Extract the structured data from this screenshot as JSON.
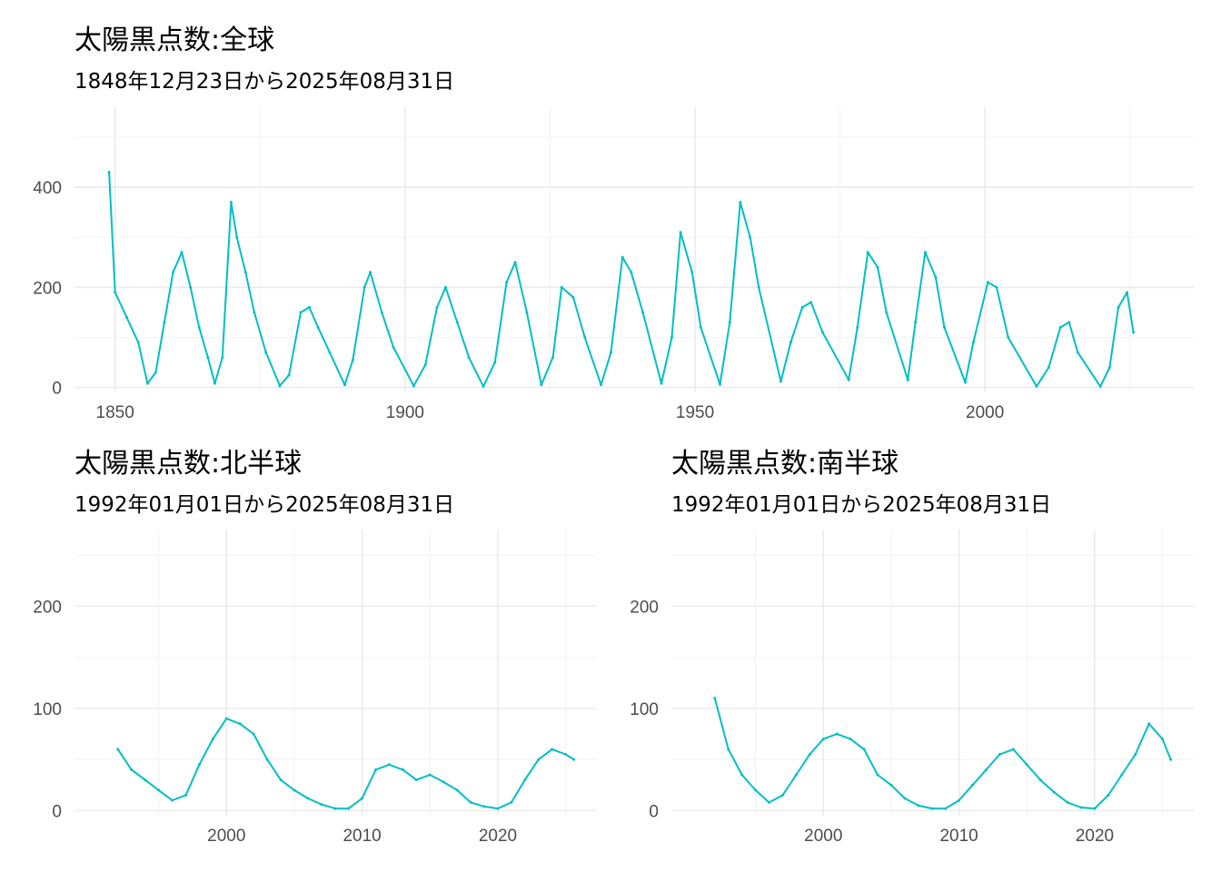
{
  "chart_data": [
    {
      "type": "line",
      "title": "太陽黒点数:全球",
      "subtitle": "1848年12月23日から2025年08月31日",
      "xlabel": "",
      "ylabel": "",
      "xlim": [
        1843,
        2036
      ],
      "ylim": [
        -10,
        560
      ],
      "x_ticks": [
        1850,
        1900,
        1950,
        2000
      ],
      "x_tick_labels": [
        "1850",
        "1900",
        "1950",
        "2000"
      ],
      "y_ticks": [
        0,
        200,
        400
      ],
      "y_tick_labels": [
        "0",
        "200",
        "400"
      ],
      "grid": true,
      "color": "#00BFC4",
      "series": [
        {
          "x": [
            1848.97,
            1850,
            1852,
            1854,
            1855.6,
            1857,
            1858.5,
            1860,
            1861.5,
            1863,
            1864.5,
            1866,
            1867.2,
            1868.5,
            1870,
            1871,
            1872.5,
            1874,
            1876,
            1878.4,
            1880,
            1882,
            1883.5,
            1885,
            1887,
            1889.6,
            1891,
            1893,
            1894,
            1896,
            1898,
            1901.5,
            1903.5,
            1905.5,
            1907,
            1909,
            1911,
            1913.5,
            1915.5,
            1917.5,
            1919,
            1921,
            1923.5,
            1925.5,
            1927,
            1929,
            1931,
            1933.8,
            1935.5,
            1937.5,
            1939,
            1941,
            1944.2,
            1946,
            1947.5,
            1949.5,
            1951,
            1954.3,
            1956,
            1957.8,
            1959.5,
            1961,
            1964.8,
            1966.5,
            1968.5,
            1970,
            1972,
            1976.5,
            1978,
            1979.8,
            1981.5,
            1983,
            1986.7,
            1988,
            1989.7,
            1991.5,
            1993,
            1996.6,
            1998,
            2000.5,
            2002,
            2004,
            2008.9,
            2011,
            2013,
            2014.5,
            2016,
            2019.9,
            2021.5,
            2023,
            2024.5,
            2025.6
          ],
          "y": [
            430,
            190,
            140,
            90,
            8,
            30,
            130,
            230,
            270,
            200,
            120,
            60,
            8,
            60,
            370,
            300,
            230,
            150,
            70,
            3,
            25,
            150,
            160,
            120,
            70,
            5,
            55,
            200,
            230,
            150,
            80,
            3,
            45,
            160,
            200,
            130,
            60,
            2,
            50,
            210,
            250,
            150,
            5,
            60,
            200,
            180,
            100,
            5,
            70,
            260,
            230,
            150,
            8,
            100,
            310,
            230,
            120,
            6,
            130,
            370,
            300,
            200,
            12,
            90,
            160,
            170,
            110,
            15,
            120,
            270,
            240,
            150,
            15,
            130,
            270,
            220,
            120,
            10,
            90,
            210,
            200,
            100,
            2,
            40,
            120,
            130,
            70,
            2,
            40,
            160,
            190,
            110
          ]
        }
      ]
    },
    {
      "type": "line",
      "title": "太陽黒点数:北半球",
      "subtitle": "1992年01月01日から2025年08月31日",
      "xlabel": "",
      "ylabel": "",
      "xlim": [
        1988.8,
        2027.3
      ],
      "ylim": [
        -5,
        275
      ],
      "x_ticks": [
        2000,
        2010,
        2020
      ],
      "x_tick_labels": [
        "2000",
        "2010",
        "2020"
      ],
      "y_ticks": [
        0,
        100,
        200
      ],
      "y_tick_labels": [
        "0",
        "100",
        "200"
      ],
      "grid": true,
      "color": "#00BFC4",
      "series": [
        {
          "x": [
            1992,
            1993,
            1994,
            1995,
            1996,
            1997,
            1998,
            1999,
            2000,
            2001,
            2002,
            2003,
            2004,
            2005,
            2006,
            2007,
            2008,
            2009,
            2010,
            2011,
            2012,
            2013,
            2014,
            2015,
            2016,
            2017,
            2018,
            2019,
            2020,
            2021,
            2022,
            2023,
            2024,
            2025,
            2025.6
          ],
          "y": [
            60,
            40,
            30,
            20,
            10,
            15,
            45,
            70,
            90,
            85,
            75,
            50,
            30,
            20,
            12,
            6,
            2,
            2,
            12,
            40,
            45,
            40,
            30,
            35,
            28,
            20,
            8,
            4,
            2,
            8,
            30,
            50,
            60,
            55,
            50
          ]
        }
      ]
    },
    {
      "type": "line",
      "title": "太陽黒点数:南半球",
      "subtitle": "1992年01月01日から2025年08月31日",
      "xlabel": "",
      "ylabel": "",
      "xlim": [
        1988.8,
        2027.3
      ],
      "ylim": [
        -5,
        275
      ],
      "x_ticks": [
        2000,
        2010,
        2020
      ],
      "x_tick_labels": [
        "2000",
        "2010",
        "2020"
      ],
      "y_ticks": [
        0,
        100,
        200
      ],
      "y_tick_labels": [
        "0",
        "100",
        "200"
      ],
      "grid": true,
      "color": "#00BFC4",
      "series": [
        {
          "x": [
            1992,
            1993,
            1994,
            1995,
            1996,
            1997,
            1998,
            1999,
            2000,
            2001,
            2002,
            2003,
            2004,
            2005,
            2006,
            2007,
            2008,
            2009,
            2010,
            2011,
            2012,
            2013,
            2014,
            2015,
            2016,
            2017,
            2018,
            2019,
            2020,
            2021,
            2022,
            2023,
            2024,
            2025,
            2025.6
          ],
          "y": [
            110,
            60,
            35,
            20,
            8,
            15,
            35,
            55,
            70,
            75,
            70,
            60,
            35,
            25,
            12,
            5,
            2,
            2,
            10,
            25,
            40,
            55,
            60,
            45,
            30,
            18,
            8,
            3,
            2,
            15,
            35,
            55,
            85,
            70,
            50
          ]
        }
      ]
    }
  ]
}
